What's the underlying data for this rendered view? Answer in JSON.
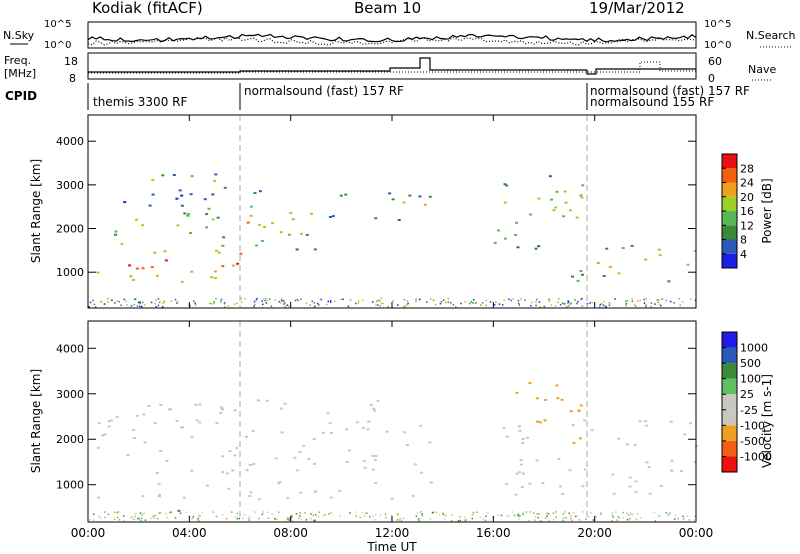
{
  "header": {
    "station": "Kodiak (fitACF)",
    "beam": "Beam 10",
    "date": "19/Mar/2012"
  },
  "params": {
    "nsky_label": "N.Sky",
    "nsearch_label": "N.Search",
    "noise_ticks": [
      "10^5",
      "10^0"
    ],
    "freq_label": "Freq.",
    "freq_unit": "[MHz]",
    "freq_ticks": [
      "18",
      "8"
    ],
    "nave_label": "Nave",
    "nave_ticks": [
      "60",
      "0"
    ],
    "cpid_label": "CPID",
    "cpid_entries": [
      {
        "label": "themis 3300 RF",
        "start": "00:00"
      },
      {
        "label": "normalsound (fast) 157 RF",
        "start": "06:00"
      },
      {
        "label": "normalsound (fast) 157 RF",
        "start": "19:40"
      },
      {
        "label": "normalsound 155 RF",
        "start": "19:40"
      }
    ]
  },
  "colors": {
    "power": [
      "#1e1ee6",
      "#2a5ab8",
      "#3a8a3a",
      "#58b858",
      "#a0d028",
      "#f0a020",
      "#f06010",
      "#e81010"
    ],
    "velocity": [
      "#ef1010",
      "#f06010",
      "#f0a020",
      "#c8c8c0",
      "#c8c8c0",
      "#60c060",
      "#3a8a3a",
      "#2a5ab8",
      "#1e1ee6"
    ]
  },
  "chart_data": [
    {
      "type": "heatmap",
      "title": "Power",
      "xlabel": "Time UT",
      "ylabel": "Slant Range [km]",
      "x_ticks": [
        "00:00",
        "04:00",
        "08:00",
        "12:00",
        "16:00",
        "20:00",
        "00:00"
      ],
      "y_ticks": [
        1000,
        2000,
        3000,
        4000
      ],
      "xlim": [
        0,
        24
      ],
      "ylim": [
        180,
        4600
      ],
      "colorbar_label": "Power [dB]",
      "colorbar_ticks": [
        4,
        8,
        12,
        16,
        20,
        24,
        28
      ],
      "colorbar_range": [
        0,
        32
      ],
      "regions": [
        {
          "x": [
            0.3,
            6.0
          ],
          "y": [
            700,
            1800
          ],
          "value": 22
        },
        {
          "x": [
            1.0,
            5.5
          ],
          "y": [
            1600,
            2700
          ],
          "value": 12
        },
        {
          "x": [
            2.0,
            6.2
          ],
          "y": [
            2700,
            3500
          ],
          "value": 8
        },
        {
          "x": [
            5.5,
            9.0
          ],
          "y": [
            1500,
            2900
          ],
          "value": 16
        },
        {
          "x": [
            8.5,
            13.5
          ],
          "y": [
            2200,
            2900
          ],
          "value": 12
        },
        {
          "x": [
            16.0,
            19.5
          ],
          "y": [
            1500,
            3400
          ],
          "value": 14
        },
        {
          "x": [
            19.0,
            24.0
          ],
          "y": [
            800,
            1700
          ],
          "value": 18
        }
      ]
    },
    {
      "type": "heatmap",
      "title": "Velocity",
      "xlabel": "Time UT",
      "ylabel": "Slant Range [km]",
      "x_ticks": [
        "00:00",
        "04:00",
        "08:00",
        "12:00",
        "16:00",
        "20:00",
        "00:00"
      ],
      "y_ticks": [
        1000,
        2000,
        3000,
        4000
      ],
      "xlim": [
        0,
        24
      ],
      "ylim": [
        180,
        4600
      ],
      "colorbar_label": "Velocity [m s-1]",
      "colorbar_ticks": [
        "1000",
        "500",
        "100",
        "25",
        "-25",
        "-100",
        "-500",
        "-1000"
      ],
      "regions": [
        {
          "x": [
            0.3,
            13.5
          ],
          "y": [
            700,
            2900
          ],
          "value": 0
        },
        {
          "x": [
            16.0,
            24.0
          ],
          "y": [
            800,
            2500
          ],
          "value": 0
        },
        {
          "x": [
            16.5,
            19.5
          ],
          "y": [
            1900,
            3300
          ],
          "value": -300
        },
        {
          "x": [
            1.5,
            4.5
          ],
          "y": [
            250,
            500
          ],
          "value": 150
        }
      ]
    }
  ]
}
